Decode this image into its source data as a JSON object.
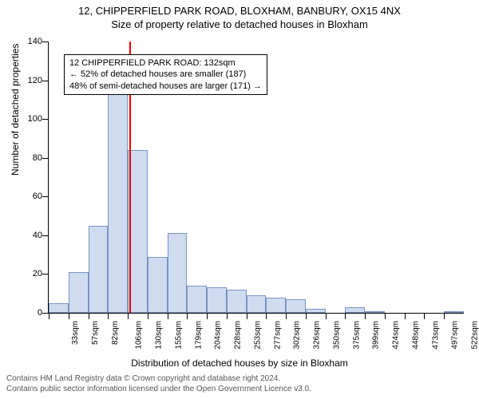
{
  "title": "12, CHIPPERFIELD PARK ROAD, BLOXHAM, BANBURY, OX15 4NX",
  "subtitle": "Size of property relative to detached houses in Bloxham",
  "ylabel": "Number of detached properties",
  "xlabel": "Distribution of detached houses by size in Bloxham",
  "footer_line1": "Contains HM Land Registry data © Crown copyright and database right 2024.",
  "footer_line2": "Contains public sector information licensed under the Open Government Licence v3.0.",
  "annotation": {
    "line1": "12 CHIPPERFIELD PARK ROAD: 132sqm",
    "line2": "← 52% of detached houses are smaller (187)",
    "line3": "48% of semi-detached houses are larger (171) →"
  },
  "chart": {
    "type": "histogram",
    "ylim": [
      0,
      140
    ],
    "ytick_step": 20,
    "yticks": [
      0,
      20,
      40,
      60,
      80,
      100,
      120,
      140
    ],
    "xtick_labels": [
      "33sqm",
      "57sqm",
      "82sqm",
      "106sqm",
      "130sqm",
      "155sqm",
      "179sqm",
      "204sqm",
      "228sqm",
      "253sqm",
      "277sqm",
      "302sqm",
      "326sqm",
      "350sqm",
      "375sqm",
      "399sqm",
      "424sqm",
      "448sqm",
      "473sqm",
      "497sqm",
      "522sqm"
    ],
    "bars": [
      {
        "h": 5
      },
      {
        "h": 21
      },
      {
        "h": 45
      },
      {
        "h": 116
      },
      {
        "h": 84
      },
      {
        "h": 29
      },
      {
        "h": 41
      },
      {
        "h": 14
      },
      {
        "h": 13
      },
      {
        "h": 12
      },
      {
        "h": 9
      },
      {
        "h": 8
      },
      {
        "h": 7
      },
      {
        "h": 2
      },
      {
        "h": 0
      },
      {
        "h": 3
      },
      {
        "h": 1
      },
      {
        "h": 0
      },
      {
        "h": 0
      },
      {
        "h": 0
      },
      {
        "h": 1
      }
    ],
    "bar_fill": "#cfdcf0",
    "bar_stroke": "#7a94c2",
    "bar_width_ratio": 1.0,
    "marker": {
      "x_ratio": 0.195,
      "color": "#ff0000"
    },
    "background": "#ffffff",
    "axis_color": "#000000",
    "tick_fontsize": 11,
    "label_fontsize": 12,
    "title_fontsize": 13
  }
}
